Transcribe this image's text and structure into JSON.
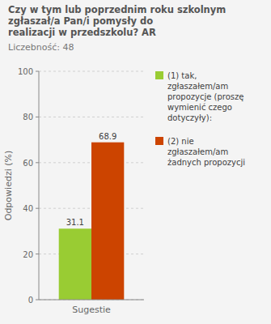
{
  "chart_data": {
    "type": "bar",
    "title": "Czy w tym lub poprzednim roku szkolnym\nzgłaszał/a Pan/i pomysły do\nrealizacji w przedszkolu? AR",
    "subtitle": "Liczebność:  48",
    "categories": [
      "Sugestie"
    ],
    "series": [
      {
        "name": "(1) tak,\nzgłaszałem/am\npropozycje (proszę\nwymienić czego\ndotyczyły):",
        "color": "#99cc33",
        "values": [
          31.1
        ]
      },
      {
        "name": "(2) nie\nzgłaszałem/am\nżadnych propozycji",
        "color": "#cc4400",
        "values": [
          68.9
        ]
      }
    ],
    "y_label": "Odpowiedzi (%)",
    "ylim": [
      0,
      100
    ],
    "yticks": [
      0,
      20,
      40,
      60,
      80,
      100
    ],
    "grid": true,
    "legend": "right",
    "data_labels": true
  }
}
